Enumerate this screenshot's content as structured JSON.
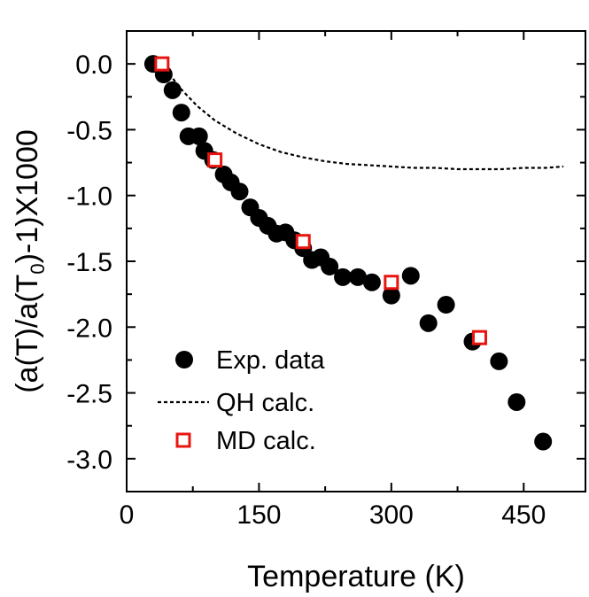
{
  "chart_data": {
    "type": "scatter",
    "xlabel": "Temperature (K)",
    "ylabel_parts": [
      "(a(T)/a(T",
      "0",
      ")-1)X1000"
    ],
    "xlim": [
      0,
      520
    ],
    "ylim": [
      -3.25,
      0.25
    ],
    "xticks": [
      0,
      150,
      300,
      450
    ],
    "xtick_labels": [
      "0",
      "150",
      "300",
      "450"
    ],
    "xminor": [
      75,
      225,
      375,
      525
    ],
    "yticks": [
      0.0,
      -0.5,
      -1.0,
      -1.5,
      -2.0,
      -2.5,
      -3.0
    ],
    "ytick_labels": [
      "0.0",
      "-0.5",
      "-1.0",
      "-1.5",
      "-2.0",
      "-2.5",
      "-3.0"
    ],
    "yminor": [
      -0.25,
      -0.75,
      -1.25,
      -1.75,
      -2.25,
      -2.75
    ],
    "grid": false,
    "legend_position": "bottom-left",
    "series": [
      {
        "name": "Exp. data",
        "kind": "scatter",
        "marker": "filled-circle",
        "color": "#000000",
        "x": [
          30,
          42,
          52,
          62,
          70,
          82,
          88,
          98,
          110,
          118,
          128,
          140,
          150,
          160,
          170,
          180,
          190,
          200,
          210,
          220,
          230,
          245,
          262,
          278,
          300,
          322,
          342,
          362,
          392,
          422,
          442,
          472
        ],
        "y": [
          0.0,
          -0.08,
          -0.2,
          -0.37,
          -0.55,
          -0.55,
          -0.66,
          -0.73,
          -0.84,
          -0.9,
          -0.97,
          -1.09,
          -1.17,
          -1.23,
          -1.29,
          -1.28,
          -1.34,
          -1.4,
          -1.49,
          -1.47,
          -1.54,
          -1.62,
          -1.62,
          -1.66,
          -1.76,
          -1.61,
          -1.97,
          -1.83,
          -2.11,
          -2.26,
          -2.57,
          -2.87
        ]
      },
      {
        "name": "QH calc.",
        "kind": "line",
        "style": "dashed",
        "color": "#000000",
        "x": [
          40,
          60,
          80,
          100,
          125,
          150,
          175,
          200,
          225,
          250,
          275,
          300,
          325,
          350,
          375,
          400,
          425,
          450,
          475,
          495
        ],
        "y": [
          0.0,
          -0.18,
          -0.32,
          -0.43,
          -0.53,
          -0.61,
          -0.67,
          -0.71,
          -0.74,
          -0.76,
          -0.77,
          -0.78,
          -0.79,
          -0.79,
          -0.8,
          -0.8,
          -0.8,
          -0.79,
          -0.79,
          -0.78
        ]
      },
      {
        "name": "MD calc.",
        "kind": "scatter",
        "marker": "open-square",
        "color": "#e8140f",
        "x": [
          40,
          100,
          200,
          300,
          400
        ],
        "y": [
          0.0,
          -0.73,
          -1.35,
          -1.66,
          -2.08
        ]
      }
    ]
  }
}
